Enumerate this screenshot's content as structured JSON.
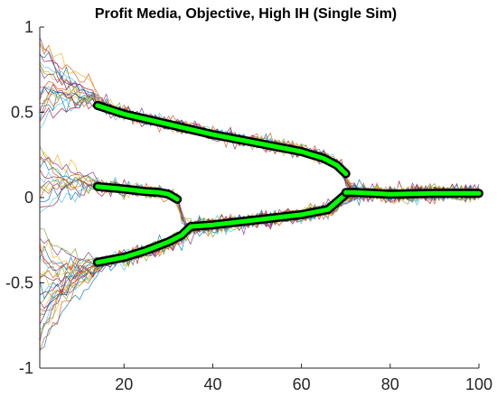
{
  "chart_data": {
    "type": "line",
    "title": "Profit Media, Objective, High IH (Single Sim)",
    "xlabel": "",
    "ylabel": "",
    "xlim": [
      1,
      100
    ],
    "ylim": [
      -1,
      1
    ],
    "x_ticks": [
      20,
      40,
      60,
      80,
      100
    ],
    "y_ticks": [
      -1,
      -0.5,
      0,
      0.5,
      1
    ],
    "x_tick_labels": [
      "20",
      "40",
      "60",
      "80",
      "100"
    ],
    "y_tick_labels": [
      "-1",
      "-0.5",
      "0",
      "0.5",
      "1"
    ],
    "grid": false,
    "legend": "none",
    "background_traces": {
      "count": 60,
      "color_cycle": [
        "#0072BD",
        "#D95319",
        "#EDB120",
        "#7E2F8E",
        "#77AC30",
        "#4DBEEE",
        "#A2142F"
      ],
      "initial_range": [
        -1,
        1
      ],
      "noise_sd": 0.035
    },
    "series": [
      {
        "role": "opinion-cluster",
        "outline_color": "#000000",
        "color": "#00FF00",
        "x": [
          14,
          20,
          30,
          40,
          50,
          60,
          65,
          68,
          70
        ],
        "values": [
          0.54,
          0.49,
          0.43,
          0.37,
          0.32,
          0.27,
          0.23,
          0.19,
          0.14
        ]
      },
      {
        "role": "opinion-cluster",
        "outline_color": "#000000",
        "color": "#00FF00",
        "x": [
          14,
          20,
          25,
          28,
          30,
          32
        ],
        "values": [
          0.065,
          0.05,
          0.035,
          0.03,
          0.02,
          -0.01
        ]
      },
      {
        "role": "opinion-cluster",
        "outline_color": "#000000",
        "color": "#00FF00",
        "x": [
          14,
          20,
          25,
          30,
          33,
          35,
          40,
          50,
          60,
          66,
          70
        ],
        "values": [
          -0.38,
          -0.35,
          -0.31,
          -0.26,
          -0.22,
          -0.17,
          -0.16,
          -0.13,
          -0.1,
          -0.07,
          0.02
        ]
      },
      {
        "role": "opinion-cluster",
        "outline_color": "#000000",
        "color": "#00FF00",
        "x": [
          70,
          72,
          80,
          90,
          100
        ],
        "values": [
          0.03,
          0.03,
          0.02,
          0.025,
          0.025
        ]
      }
    ]
  }
}
